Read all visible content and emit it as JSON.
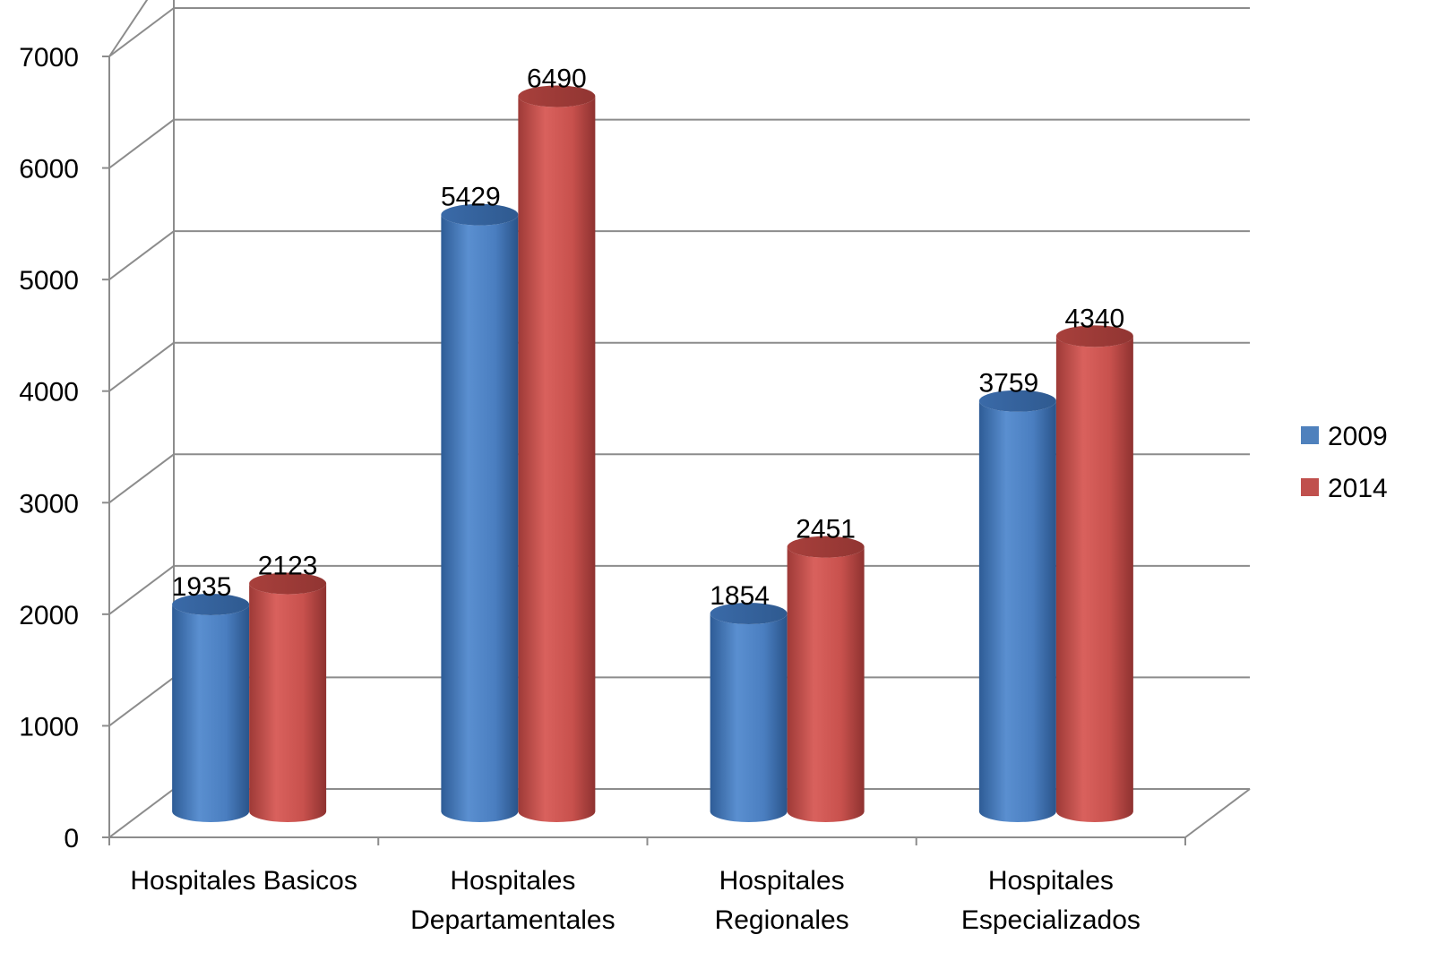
{
  "chart_data": {
    "type": "bar",
    "categories": [
      [
        "Hospitales Basicos"
      ],
      [
        "Hospitales",
        "Departamentales"
      ],
      [
        "Hospitales",
        "Regionales"
      ],
      [
        "Hospitales",
        "Especializados"
      ]
    ],
    "series": [
      {
        "name": "2009",
        "values": [
          1935,
          5429,
          1854,
          3759
        ],
        "color": "#4F81BD"
      },
      {
        "name": "2014",
        "values": [
          2123,
          6490,
          2451,
          4340
        ],
        "color": "#C0504D"
      }
    ],
    "yticks": [
      "0",
      "1000",
      "2000",
      "3000",
      "4000",
      "5000",
      "6000",
      "7000"
    ],
    "ylim": [
      0,
      7000
    ],
    "grid": true,
    "legend_position": "right",
    "style": "3d-cylinder",
    "title": "",
    "xlabel": "",
    "ylabel": ""
  }
}
